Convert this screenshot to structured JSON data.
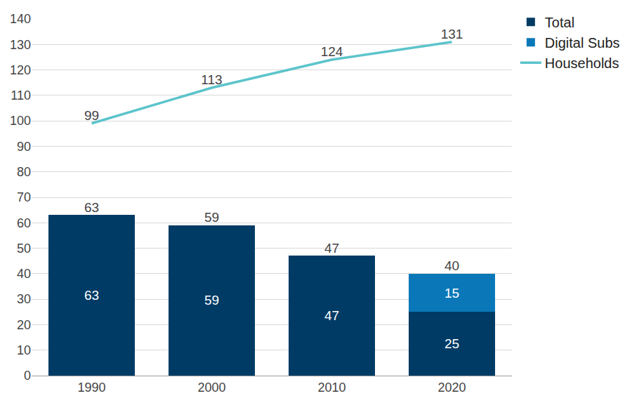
{
  "chart_data": {
    "type": "bar",
    "categories": [
      "1990",
      "2000",
      "2010",
      "2020"
    ],
    "stacked": true,
    "series": [
      {
        "name": "Total",
        "type": "bar",
        "color": "#003b65",
        "values": [
          63,
          59,
          47,
          25
        ],
        "data_labels": true
      },
      {
        "name": "Digital Subs",
        "type": "bar",
        "color": "#0a78b8",
        "values": [
          null,
          null,
          null,
          15
        ],
        "data_labels": true
      },
      {
        "name": "Households",
        "type": "line",
        "color": "#5cc4cb",
        "values": [
          99,
          113,
          124,
          131
        ],
        "data_labels": true
      }
    ],
    "totals": [
      63,
      59,
      47,
      40
    ],
    "ylim": [
      0,
      140
    ],
    "yticks": [
      0,
      10,
      20,
      30,
      40,
      50,
      60,
      70,
      80,
      90,
      100,
      110,
      120,
      130,
      140
    ],
    "grid": true,
    "legend": "top right"
  }
}
